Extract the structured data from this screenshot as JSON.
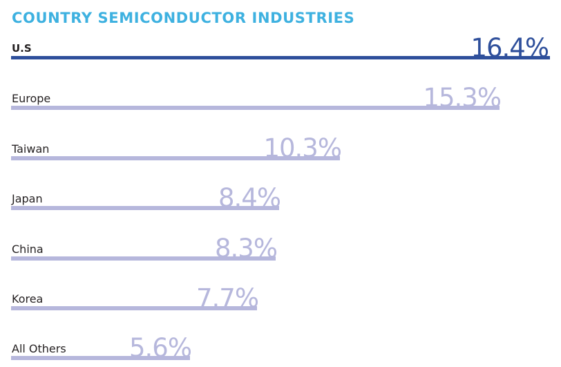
{
  "chart_data": {
    "type": "bar",
    "orientation": "horizontal",
    "title": "COUNTRY SEMICONDUCTOR INDUSTRIES",
    "categories": [
      "U.S",
      "Europe",
      "Taiwan",
      "Japan",
      "China",
      "Korea",
      "All Others"
    ],
    "values": [
      16.4,
      15.3,
      10.3,
      8.4,
      8.3,
      7.7,
      5.6
    ],
    "value_labels": [
      "16.4%",
      "15.3%",
      "10.3%",
      "8.4%",
      "8.3%",
      "7.7%",
      "5.6%"
    ],
    "highlight_index": 0,
    "grid": false,
    "legend": "none"
  },
  "colors": {
    "title": "#3eb1e0",
    "highlight": "#2e4f9b",
    "bar": "#b6b7dc",
    "label_text": "#231f20"
  }
}
